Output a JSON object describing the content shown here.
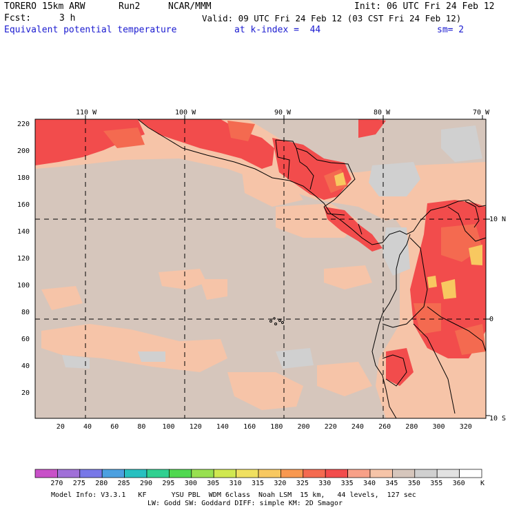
{
  "header": {
    "model": "TORERO",
    "resolution": "15km ARW",
    "run": "Run2",
    "org": "NCAR/MMM",
    "init": "Init: 06 UTC Fri 24 Feb 12",
    "fcst_label": "Fcst:",
    "fcst_value": "3 h",
    "valid": "Valid: 09 UTC Fri 24 Feb 12 (03 CST Fri 24 Feb 12)",
    "field": "Equivalent potential temperature",
    "level": "at k-index =  44",
    "smoothing": "sm= 2"
  },
  "map": {
    "lon_labels": [
      "110 W",
      "100 W",
      "90 W",
      "80 W",
      "70 W"
    ],
    "lat_labels": [
      "10 N",
      "0",
      "10 S"
    ],
    "y_ticks": [
      "220",
      "200",
      "180",
      "160",
      "140",
      "120",
      "100",
      "80",
      "60",
      "40",
      "20"
    ],
    "x_ticks": [
      "20",
      "40",
      "60",
      "80",
      "100",
      "120",
      "140",
      "160",
      "180",
      "200",
      "220",
      "240",
      "260",
      "280",
      "300",
      "320"
    ]
  },
  "colorbar": {
    "labels": [
      "270",
      "275",
      "280",
      "285",
      "290",
      "295",
      "300",
      "305",
      "310",
      "315",
      "320",
      "325",
      "330",
      "335",
      "340",
      "345",
      "350",
      "355",
      "360"
    ],
    "unit": "K",
    "colors": [
      "#c850c8",
      "#a070d8",
      "#7878e8",
      "#4ca0e0",
      "#28c0c0",
      "#30d090",
      "#50d850",
      "#98e050",
      "#d0e850",
      "#f0e060",
      "#f8c860",
      "#f89850",
      "#f46a50",
      "#f24c4c",
      "#f8a088",
      "#f6c4a8",
      "#d6c6bc",
      "#d0d0d0",
      "#e2e2e2",
      "#ffffff"
    ]
  },
  "footer": {
    "line1": "Model Info: V3.3.1   KF      YSU PBL  WDM 6class  Noah LSM  15 km,   44 levels,  127 sec",
    "line2": "LW: Godd SW: Goddard DIFF: simple KM: 2D Smagor"
  }
}
